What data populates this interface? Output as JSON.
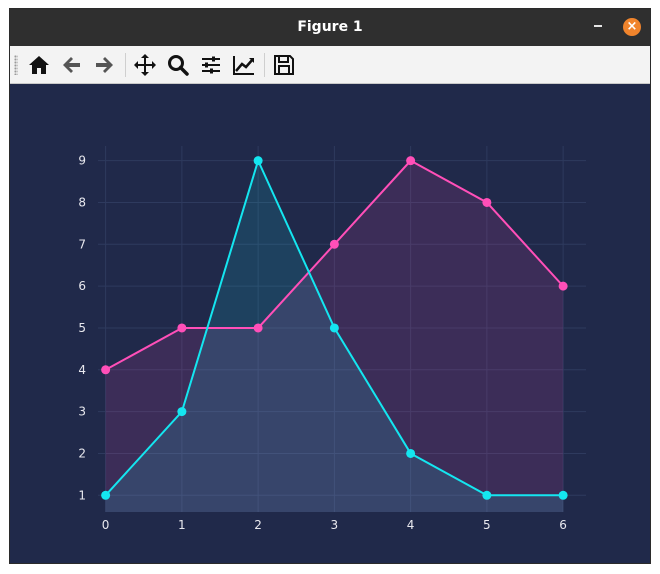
{
  "window": {
    "title": "Figure 1"
  },
  "toolbar": {
    "icons": [
      "home-icon",
      "back-arrow-icon",
      "forward-arrow-icon",
      "pan-icon",
      "zoom-icon",
      "configure-subplots-icon",
      "edit-axis-icon",
      "save-icon"
    ]
  },
  "colors": {
    "background": "#20294a",
    "grid": "#2e3a5e",
    "pink": "#ff4fb8",
    "cyan": "#14e6f0"
  },
  "chart_data": {
    "type": "area",
    "x": [
      0,
      1,
      2,
      3,
      4,
      5,
      6
    ],
    "series": [
      {
        "color": "#ff4fb8",
        "values": [
          4,
          5,
          5,
          7,
          9,
          8,
          6
        ]
      },
      {
        "color": "#14e6f0",
        "values": [
          1,
          3,
          9,
          5,
          2,
          1,
          1
        ]
      }
    ],
    "xlim": [
      -0.1,
      6.3
    ],
    "ylim": [
      0.6,
      9.35
    ],
    "xticks": [
      0,
      1,
      2,
      3,
      4,
      5,
      6
    ],
    "yticks": [
      1,
      2,
      3,
      4,
      5,
      6,
      7,
      8,
      9
    ],
    "title": "",
    "xlabel": "",
    "ylabel": "",
    "grid": true,
    "markers": true
  }
}
